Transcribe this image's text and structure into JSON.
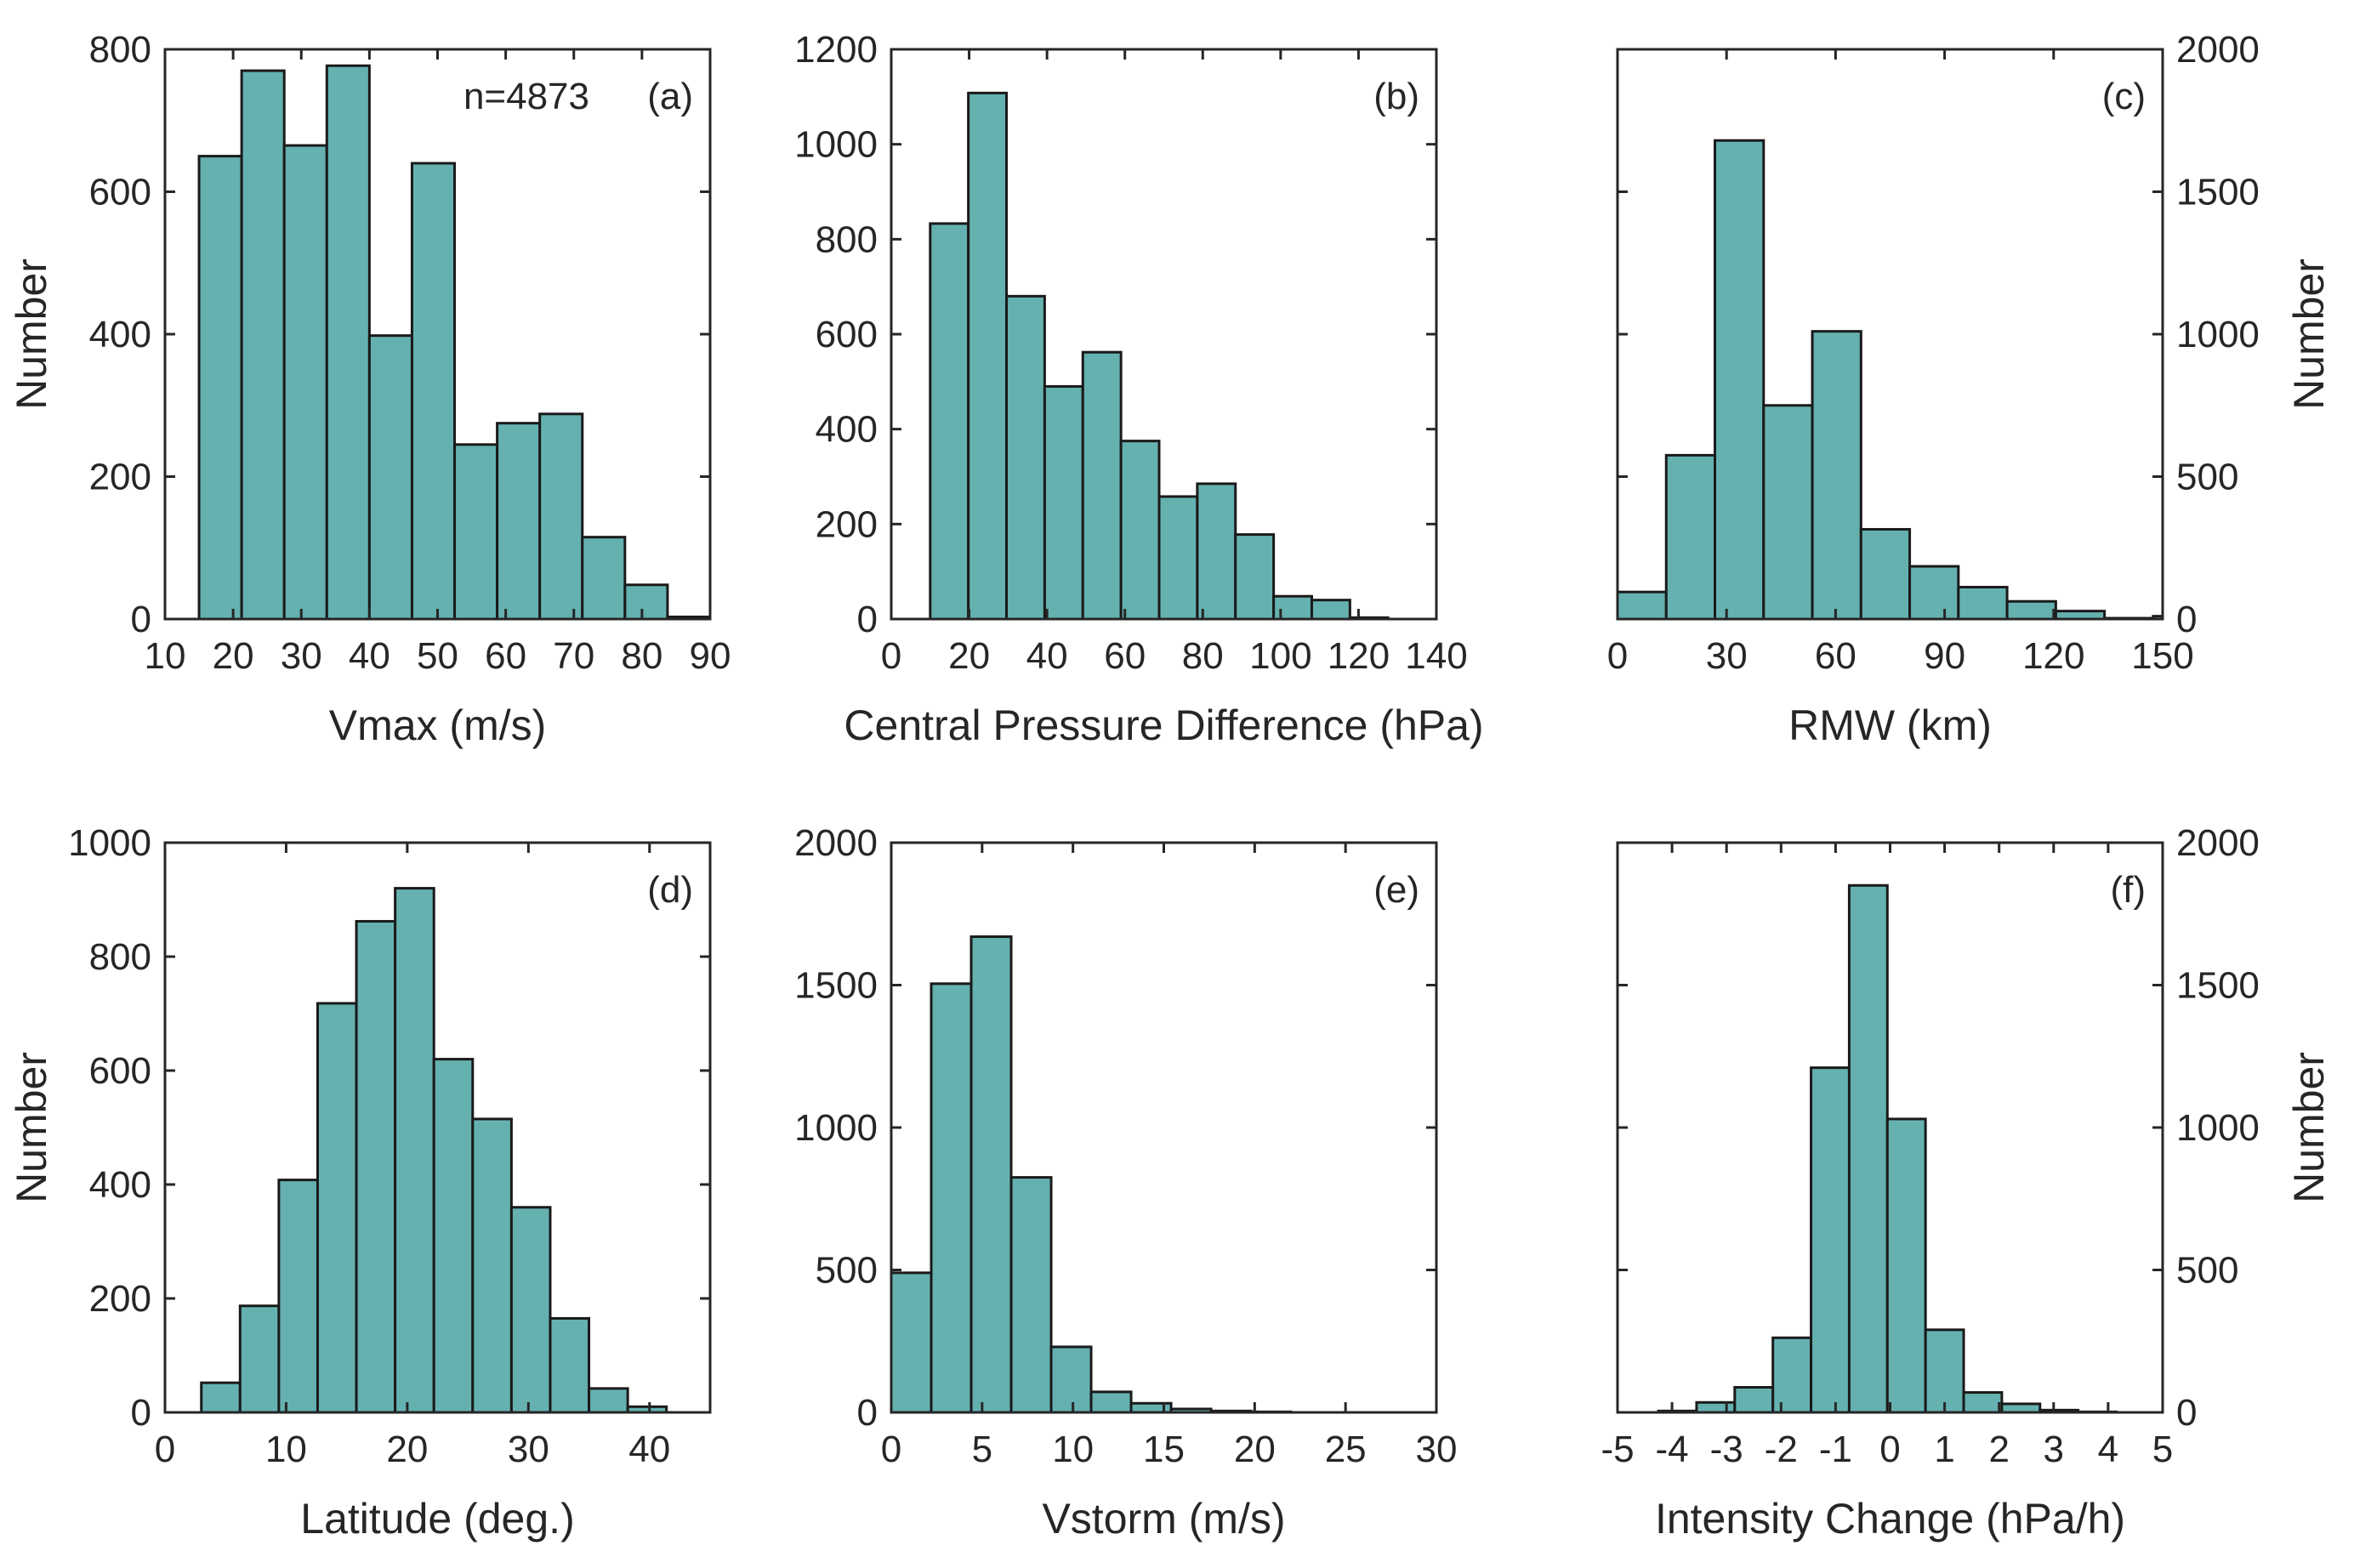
{
  "colors": {
    "bar_fill": "#65B1B0",
    "bar_edge": "#1a1a1a",
    "axis": "#262626"
  },
  "chart_data": [
    {
      "type": "bar",
      "panel": "(a)",
      "annotation": "n=4873",
      "xlabel": "Vmax (m/s)",
      "ylabel": "Number",
      "ylabel_side": "left",
      "xlim": [
        10,
        90
      ],
      "ylim": [
        0,
        800
      ],
      "xticks": [
        10,
        20,
        30,
        40,
        50,
        60,
        70,
        80,
        90
      ],
      "xtick_labels": [
        "10",
        "20",
        "30",
        "40",
        "50",
        "60",
        "70",
        "80",
        "90"
      ],
      "yticks": [
        0,
        200,
        400,
        600,
        800
      ],
      "ytick_labels": [
        "0",
        "200",
        "400",
        "600",
        "800"
      ],
      "bin_edges": [
        15,
        21.25,
        27.5,
        33.75,
        40,
        46.25,
        52.5,
        58.75,
        65,
        71.25,
        77.5,
        83.75,
        90
      ],
      "values": [
        650,
        770,
        665,
        777,
        398,
        640,
        245,
        275,
        288,
        115,
        48,
        3
      ]
    },
    {
      "type": "bar",
      "panel": "(b)",
      "xlabel": "Central Pressure Difference (hPa)",
      "ylabel": "",
      "ylabel_side": "left",
      "xlim": [
        0,
        140
      ],
      "ylim": [
        0,
        1200
      ],
      "xticks": [
        0,
        20,
        40,
        60,
        80,
        100,
        120,
        140
      ],
      "xtick_labels": [
        "0",
        "20",
        "40",
        "60",
        "80",
        "100",
        "120",
        "140"
      ],
      "yticks": [
        0,
        200,
        400,
        600,
        800,
        1000,
        1200
      ],
      "ytick_labels": [
        "0",
        "200",
        "400",
        "600",
        "800",
        "1000",
        "1200"
      ],
      "bin_edges": [
        10,
        19.8,
        29.6,
        39.4,
        49.2,
        59,
        68.8,
        78.6,
        88.4,
        98.2,
        108,
        117.8,
        127.6,
        137.4
      ],
      "values": [
        833,
        1108,
        680,
        490,
        562,
        375,
        258,
        285,
        178,
        48,
        40,
        3,
        0
      ]
    },
    {
      "type": "bar",
      "panel": "(c)",
      "xlabel": "RMW (km)",
      "ylabel": "Number",
      "ylabel_side": "right",
      "xlim": [
        0,
        150
      ],
      "ylim": [
        0,
        2000
      ],
      "xticks": [
        0,
        30,
        60,
        90,
        120,
        150
      ],
      "xtick_labels": [
        "0",
        "30",
        "60",
        "90",
        "120",
        "150"
      ],
      "yticks": [
        0,
        500,
        1000,
        1500,
        2000
      ],
      "ytick_labels": [
        "0",
        "500",
        "1000",
        "1500",
        "2000"
      ],
      "bin_edges": [
        0,
        13.4,
        26.8,
        40.2,
        53.6,
        67,
        80.4,
        93.8,
        107.2,
        120.6,
        134,
        147.4,
        150
      ],
      "values": [
        95,
        575,
        1680,
        750,
        1010,
        315,
        185,
        112,
        62,
        28,
        3,
        10
      ]
    },
    {
      "type": "bar",
      "panel": "(d)",
      "xlabel": "Latitude (deg.)",
      "ylabel": "Number",
      "ylabel_side": "left",
      "xlim": [
        0,
        45
      ],
      "ylim": [
        0,
        1000
      ],
      "xticks": [
        0,
        10,
        20,
        30,
        40
      ],
      "xtick_labels": [
        "0",
        "10",
        "20",
        "30",
        "40"
      ],
      "yticks": [
        0,
        200,
        400,
        600,
        800,
        1000
      ],
      "ytick_labels": [
        "0",
        "200",
        "400",
        "600",
        "800",
        "1000"
      ],
      "bin_edges": [
        3,
        6.2,
        9.4,
        12.6,
        15.8,
        19,
        22.2,
        25.4,
        28.6,
        31.8,
        35,
        38.2,
        41.4
      ],
      "values": [
        52,
        187,
        408,
        718,
        862,
        920,
        620,
        515,
        360,
        165,
        42,
        10
      ]
    },
    {
      "type": "bar",
      "panel": "(e)",
      "xlabel": "Vstorm (m/s)",
      "ylabel": "",
      "ylabel_side": "left",
      "xlim": [
        0,
        30
      ],
      "ylim": [
        0,
        2000
      ],
      "xticks": [
        0,
        5,
        10,
        15,
        20,
        25,
        30
      ],
      "xtick_labels": [
        "0",
        "5",
        "10",
        "15",
        "20",
        "25",
        "30"
      ],
      "yticks": [
        0,
        500,
        1000,
        1500,
        2000
      ],
      "ytick_labels": [
        "0",
        "500",
        "1000",
        "1500",
        "2000"
      ],
      "bin_edges": [
        0,
        2.2,
        4.4,
        6.6,
        8.8,
        11,
        13.2,
        15.4,
        17.6,
        19.8,
        22,
        24.2,
        26.4,
        28.6
      ],
      "values": [
        490,
        1505,
        1670,
        825,
        230,
        72,
        32,
        12,
        5,
        2,
        0,
        0,
        0
      ]
    },
    {
      "type": "bar",
      "panel": "(f)",
      "xlabel": "Intensity Change (hPa/h)",
      "ylabel": "Number",
      "ylabel_side": "right",
      "xlim": [
        -5,
        5
      ],
      "ylim": [
        0,
        2000
      ],
      "xticks": [
        -5,
        -4,
        -3,
        -2,
        -1,
        0,
        1,
        2,
        3,
        4,
        5
      ],
      "xtick_labels": [
        "-5",
        "-4",
        "-3",
        "-2",
        "-1",
        "0",
        "1",
        "2",
        "3",
        "4",
        "5"
      ],
      "yticks": [
        0,
        500,
        1000,
        1500,
        2000
      ],
      "ytick_labels": [
        "0",
        "500",
        "1000",
        "1500",
        "2000"
      ],
      "bin_edges": [
        -4.25,
        -3.55,
        -2.85,
        -2.15,
        -1.45,
        -0.75,
        -0.05,
        0.65,
        1.35,
        2.05,
        2.75,
        3.45,
        4.15
      ],
      "values": [
        5,
        35,
        88,
        262,
        1210,
        1850,
        1030,
        290,
        70,
        30,
        8,
        2
      ]
    }
  ]
}
